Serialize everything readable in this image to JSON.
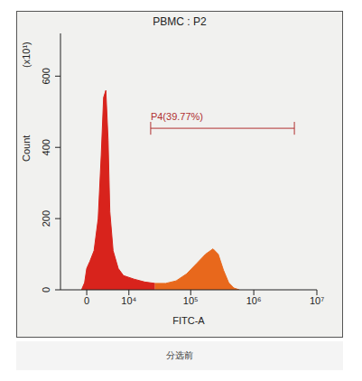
{
  "chart_data": {
    "type": "area",
    "title": "PBMC : P2",
    "x_label": "FITC-A",
    "y_label": "Count",
    "y_unit": "(x10¹)",
    "log": "x",
    "color": "#d8231c",
    "x": [
      -860,
      -350,
      0,
      520,
      1220,
      1940,
      2500,
      2950,
      3400,
      3880,
      4260,
      5030,
      6390,
      8000,
      12200,
      18300,
      27000,
      40000,
      58600,
      86400,
      126000,
      172000,
      226000,
      273000,
      331000,
      400000,
      484000,
      590000
    ],
    "values": [
      0,
      20,
      60,
      80,
      110,
      200,
      380,
      540,
      560,
      420,
      220,
      110,
      60,
      40,
      30,
      22,
      18,
      18,
      25,
      45,
      75,
      100,
      115,
      100,
      55,
      20,
      5,
      0
    ],
    "xlim": [
      -5000,
      10000000
    ],
    "xticks": [
      {
        "value": 0,
        "label": "0"
      },
      {
        "value": 10000,
        "label": "10⁴"
      },
      {
        "value": 100000,
        "label": "10⁵"
      },
      {
        "value": 1000000,
        "label": "10⁶"
      },
      {
        "value": 10000000,
        "label": "10⁷"
      }
    ],
    "ylim": [
      0,
      720
    ],
    "yticks": [
      0,
      200,
      400,
      600
    ],
    "gate": {
      "label": "P4(39.77%)",
      "range": [
        23000,
        4400000
      ],
      "color": "#e8681c"
    }
  },
  "caption": "分选前"
}
